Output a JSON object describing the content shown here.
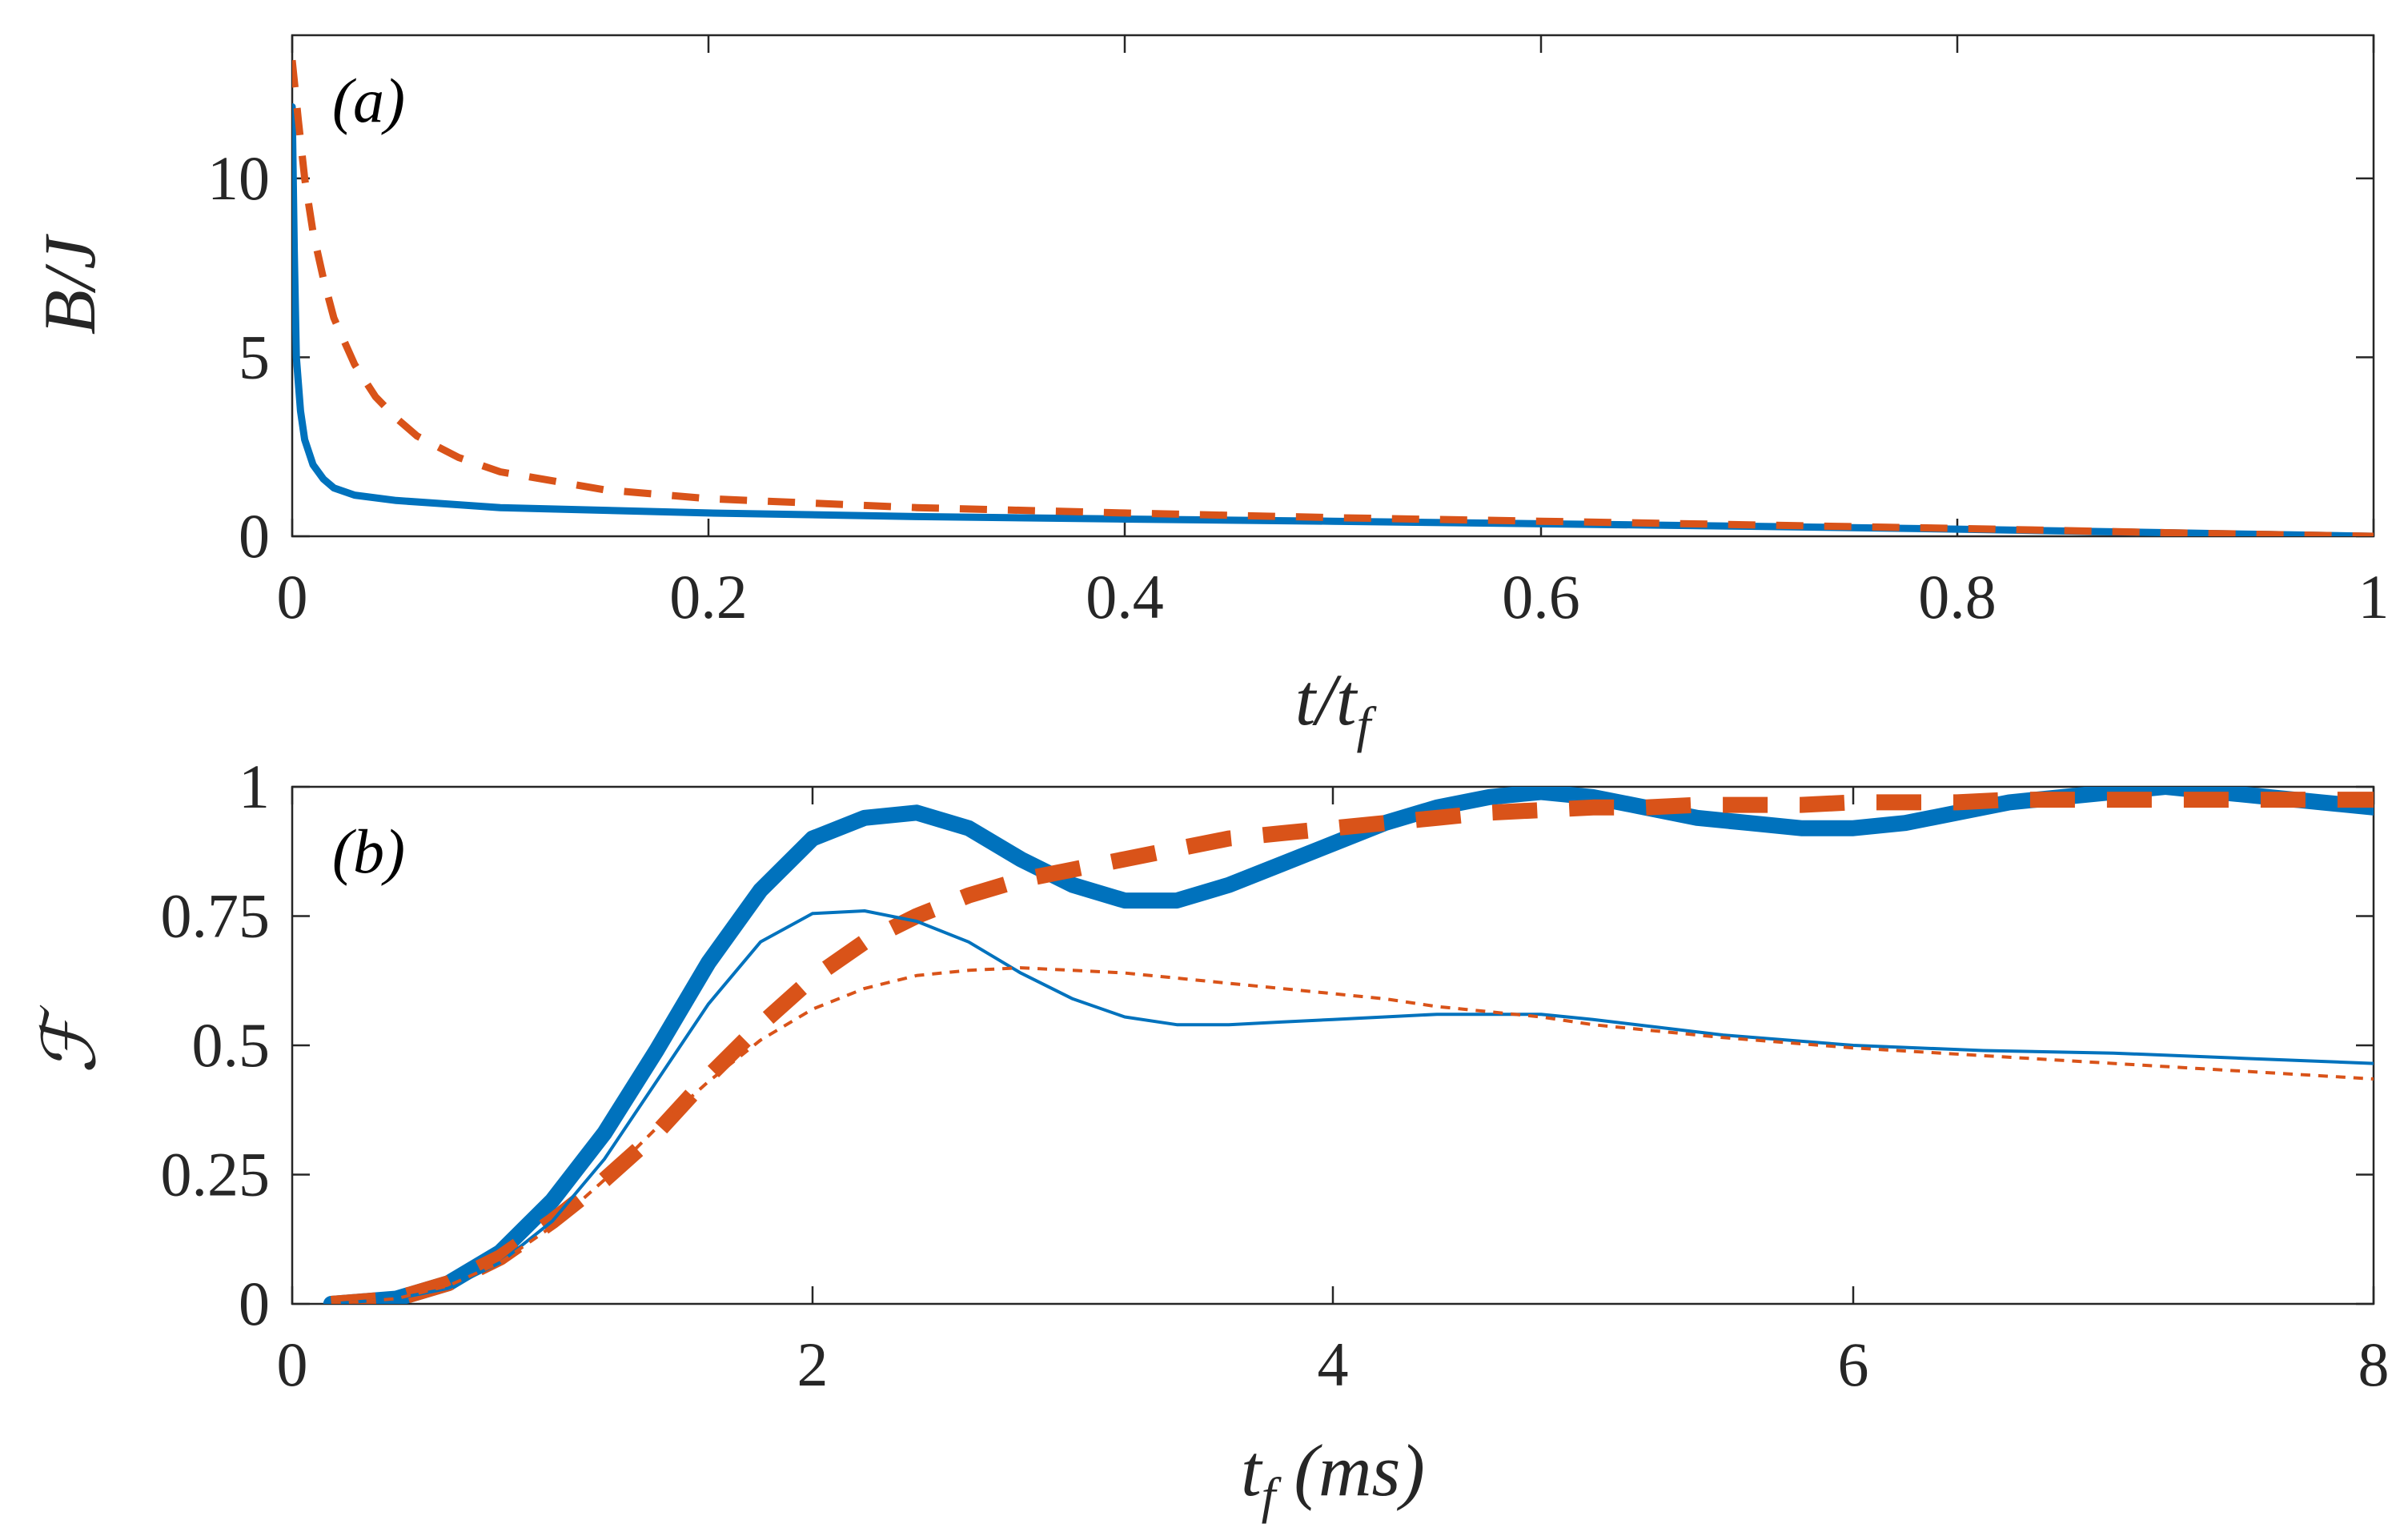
{
  "colors": {
    "blue": "#0072BD",
    "orange": "#D95319",
    "axis": "#262626"
  },
  "chart_data": [
    {
      "type": "line",
      "panel_label": "(a)",
      "xlabel": "t/t_f",
      "xlabel_parts": {
        "base": "t/t",
        "sub": "f"
      },
      "ylabel": "B/J",
      "xlim": [
        0,
        1
      ],
      "ylim": [
        0,
        14
      ],
      "xticks": [
        0,
        0.2,
        0.4,
        0.6,
        0.8,
        1
      ],
      "xtick_labels": [
        "0",
        "0.2",
        "0.4",
        "0.6",
        "0.8",
        "1"
      ],
      "yticks": [
        0,
        5,
        10
      ],
      "ytick_labels": [
        "0",
        "5",
        "10"
      ],
      "series": [
        {
          "name": "solid",
          "style": "solid",
          "color": "blue",
          "weight": "medium",
          "x": [
            0,
            0.001,
            0.002,
            0.004,
            0.006,
            0.01,
            0.015,
            0.02,
            0.03,
            0.05,
            0.1,
            0.2,
            0.3,
            0.4,
            0.5,
            0.6,
            0.7,
            0.8,
            0.9,
            0.95,
            1.0
          ],
          "y": [
            12.0,
            8.0,
            5.0,
            3.5,
            2.7,
            2.0,
            1.6,
            1.35,
            1.15,
            1.0,
            0.8,
            0.65,
            0.55,
            0.48,
            0.42,
            0.35,
            0.28,
            0.2,
            0.1,
            0.05,
            0.0
          ]
        },
        {
          "name": "dashed",
          "style": "dashed",
          "color": "orange",
          "weight": "medium",
          "x": [
            0,
            0.003,
            0.006,
            0.01,
            0.015,
            0.02,
            0.03,
            0.04,
            0.05,
            0.06,
            0.08,
            0.1,
            0.15,
            0.2,
            0.3,
            0.4,
            0.5,
            0.6,
            0.7,
            0.8,
            0.9,
            0.95,
            1.0
          ],
          "y": [
            13.3,
            11.6,
            10.0,
            8.5,
            7.2,
            6.1,
            4.8,
            3.9,
            3.3,
            2.8,
            2.2,
            1.8,
            1.3,
            1.05,
            0.8,
            0.65,
            0.52,
            0.42,
            0.32,
            0.22,
            0.1,
            0.05,
            0.0
          ]
        }
      ]
    },
    {
      "type": "line",
      "panel_label": "(b)",
      "xlabel": "t_f (ms)",
      "xlabel_parts": {
        "base": "t",
        "sub": "f",
        "rest": " (ms)"
      },
      "ylabel": "ℱ",
      "xlim": [
        0,
        8
      ],
      "ylim": [
        0,
        1
      ],
      "xticks": [
        0,
        2,
        4,
        6,
        8
      ],
      "xtick_labels": [
        "0",
        "2",
        "4",
        "6",
        "8"
      ],
      "yticks": [
        0,
        0.25,
        0.5,
        0.75,
        1
      ],
      "ytick_labels": [
        "0",
        "0.25",
        "0.5",
        "0.75",
        "1"
      ],
      "series": [
        {
          "name": "solid-thick",
          "style": "solid",
          "color": "blue",
          "weight": "thick",
          "x": [
            0.15,
            0.4,
            0.6,
            0.8,
            1.0,
            1.2,
            1.4,
            1.6,
            1.8,
            2.0,
            2.2,
            2.4,
            2.6,
            2.8,
            3.0,
            3.2,
            3.4,
            3.6,
            3.8,
            4.0,
            4.2,
            4.4,
            4.6,
            4.8,
            5.0,
            5.2,
            5.4,
            5.6,
            5.8,
            6.0,
            6.2,
            6.4,
            6.6,
            6.8,
            7.0,
            7.2,
            7.4,
            7.6,
            7.8,
            8.0
          ],
          "y": [
            0.0,
            0.01,
            0.04,
            0.1,
            0.2,
            0.33,
            0.49,
            0.66,
            0.8,
            0.9,
            0.94,
            0.95,
            0.92,
            0.86,
            0.81,
            0.78,
            0.78,
            0.81,
            0.85,
            0.89,
            0.93,
            0.96,
            0.98,
            0.99,
            0.98,
            0.96,
            0.94,
            0.93,
            0.92,
            0.92,
            0.93,
            0.95,
            0.97,
            0.98,
            0.99,
            1.0,
            0.99,
            0.98,
            0.97,
            0.96
          ]
        },
        {
          "name": "dashed-thick",
          "style": "dashed",
          "color": "orange",
          "weight": "thick",
          "x": [
            0.15,
            0.4,
            0.6,
            0.8,
            1.0,
            1.2,
            1.4,
            1.6,
            1.8,
            2.0,
            2.2,
            2.4,
            2.6,
            2.8,
            3.0,
            3.2,
            3.4,
            3.6,
            3.8,
            4.0,
            4.2,
            4.4,
            4.6,
            4.8,
            5.0,
            5.2,
            5.4,
            5.6,
            5.8,
            6.0,
            6.2,
            6.4,
            6.6,
            6.8,
            7.0,
            7.2,
            7.4,
            7.6,
            7.8,
            8.0
          ],
          "y": [
            0.0,
            0.01,
            0.04,
            0.09,
            0.16,
            0.24,
            0.33,
            0.44,
            0.54,
            0.63,
            0.7,
            0.75,
            0.79,
            0.82,
            0.84,
            0.86,
            0.88,
            0.9,
            0.91,
            0.92,
            0.93,
            0.94,
            0.95,
            0.955,
            0.96,
            0.96,
            0.965,
            0.965,
            0.965,
            0.97,
            0.97,
            0.97,
            0.975,
            0.975,
            0.975,
            0.975,
            0.975,
            0.975,
            0.975,
            0.975
          ]
        },
        {
          "name": "solid-thin",
          "style": "solid",
          "color": "blue",
          "weight": "thin",
          "x": [
            0.15,
            0.4,
            0.6,
            0.8,
            1.0,
            1.2,
            1.4,
            1.6,
            1.8,
            2.0,
            2.2,
            2.4,
            2.6,
            2.8,
            3.0,
            3.2,
            3.4,
            3.6,
            3.8,
            4.0,
            4.2,
            4.4,
            4.6,
            4.8,
            5.0,
            5.5,
            6.0,
            6.5,
            7.0,
            7.5,
            8.0
          ],
          "y": [
            0.0,
            0.01,
            0.03,
            0.08,
            0.16,
            0.28,
            0.43,
            0.58,
            0.7,
            0.755,
            0.76,
            0.74,
            0.7,
            0.64,
            0.59,
            0.555,
            0.54,
            0.54,
            0.545,
            0.55,
            0.555,
            0.56,
            0.56,
            0.56,
            0.55,
            0.52,
            0.5,
            0.49,
            0.485,
            0.475,
            0.465
          ]
        },
        {
          "name": "dashed-thin",
          "style": "dashed",
          "color": "orange",
          "weight": "thin",
          "x": [
            0.15,
            0.4,
            0.6,
            0.8,
            1.0,
            1.2,
            1.4,
            1.6,
            1.8,
            2.0,
            2.2,
            2.4,
            2.6,
            2.8,
            3.0,
            3.2,
            3.4,
            3.6,
            3.8,
            4.0,
            4.2,
            4.4,
            4.6,
            4.8,
            5.0,
            5.5,
            6.0,
            6.5,
            7.0,
            7.5,
            8.0
          ],
          "y": [
            0.0,
            0.01,
            0.035,
            0.08,
            0.15,
            0.24,
            0.34,
            0.43,
            0.51,
            0.57,
            0.61,
            0.635,
            0.645,
            0.65,
            0.645,
            0.64,
            0.63,
            0.62,
            0.61,
            0.6,
            0.59,
            0.575,
            0.565,
            0.555,
            0.54,
            0.515,
            0.495,
            0.48,
            0.465,
            0.45,
            0.435
          ]
        }
      ]
    }
  ]
}
